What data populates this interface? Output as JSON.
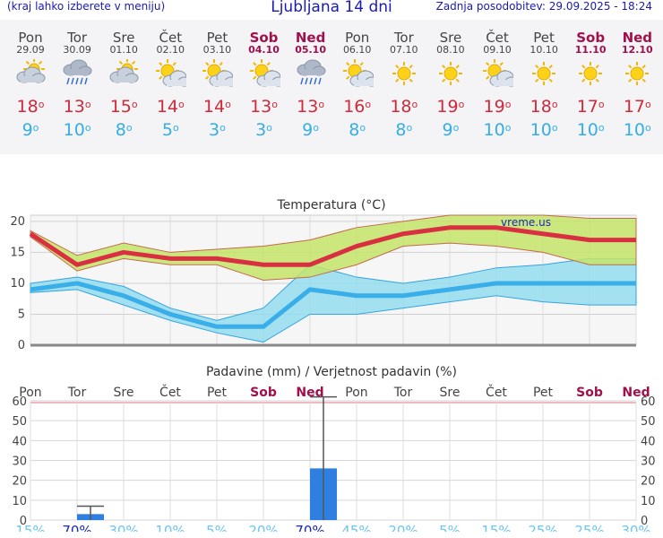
{
  "header": {
    "menu_hint": "(kraj lahko izberete v meniju)",
    "title": "Ljubljana 14 dni",
    "last_update": "Zadnja posodobitev: 29.09.2025 - 18:24"
  },
  "days": [
    {
      "name": "Pon",
      "date": "29.09",
      "weekend": false,
      "icon": "partly-cloudy-icon",
      "max": "18",
      "min": "9"
    },
    {
      "name": "Tor",
      "date": "30.09",
      "weekend": false,
      "icon": "rain-cloud-icon",
      "max": "13",
      "min": "10"
    },
    {
      "name": "Sre",
      "date": "01.10",
      "weekend": false,
      "icon": "partly-cloudy-icon",
      "max": "15",
      "min": "8"
    },
    {
      "name": "Čet",
      "date": "02.10",
      "weekend": false,
      "icon": "sun-cloud-icon",
      "max": "14",
      "min": "5"
    },
    {
      "name": "Pet",
      "date": "03.10",
      "weekend": false,
      "icon": "sun-cloud-icon",
      "max": "14",
      "min": "3"
    },
    {
      "name": "Sob",
      "date": "04.10",
      "weekend": true,
      "icon": "sun-cloud-icon",
      "max": "13",
      "min": "3"
    },
    {
      "name": "Ned",
      "date": "05.10",
      "weekend": true,
      "icon": "rain-cloud-icon",
      "max": "13",
      "min": "9"
    },
    {
      "name": "Pon",
      "date": "06.10",
      "weekend": false,
      "icon": "sun-cloud-icon",
      "max": "16",
      "min": "8"
    },
    {
      "name": "Tor",
      "date": "07.10",
      "weekend": false,
      "icon": "sun-icon",
      "max": "18",
      "min": "8"
    },
    {
      "name": "Sre",
      "date": "08.10",
      "weekend": false,
      "icon": "sun-icon",
      "max": "19",
      "min": "9"
    },
    {
      "name": "Čet",
      "date": "09.10",
      "weekend": false,
      "icon": "sun-cloud-icon",
      "max": "19",
      "min": "10"
    },
    {
      "name": "Pet",
      "date": "10.10",
      "weekend": false,
      "icon": "sun-icon",
      "max": "18",
      "min": "10"
    },
    {
      "name": "Sob",
      "date": "11.10",
      "weekend": true,
      "icon": "sun-icon",
      "max": "17",
      "min": "10"
    },
    {
      "name": "Ned",
      "date": "12.10",
      "weekend": true,
      "icon": "sun-icon",
      "max": "17",
      "min": "10"
    }
  ],
  "colors": {
    "max": "#d83040",
    "min": "#3aaee8",
    "weekend": "#a0104a",
    "bar": "#2f7fe0",
    "max_band": "#c6e46a",
    "min_band": "#8fdcef"
  },
  "chart_data": [
    {
      "type": "line",
      "title": "Temperatura (°C)",
      "watermark": "vreme.us",
      "ylim": [
        0,
        21
      ],
      "yticks": [
        0,
        5,
        10,
        15,
        20
      ],
      "x": [
        "29.09",
        "30.09",
        "01.10",
        "02.10",
        "03.10",
        "04.10",
        "05.10",
        "06.10",
        "07.10",
        "08.10",
        "09.10",
        "10.10",
        "11.10",
        "12.10"
      ],
      "series": [
        {
          "name": "max",
          "values": [
            18,
            13,
            15,
            14,
            14,
            13,
            13,
            16,
            18,
            19,
            19,
            18,
            17,
            17
          ],
          "range_low": [
            17.5,
            12,
            14,
            13,
            13,
            10.5,
            11,
            13,
            16,
            16.5,
            16,
            15,
            13,
            13
          ],
          "range_high": [
            18.5,
            14.5,
            16.5,
            15,
            15.5,
            16,
            17,
            19,
            20,
            21,
            21,
            21,
            20.5,
            20.5
          ]
        },
        {
          "name": "min",
          "values": [
            9,
            10,
            8,
            5,
            3,
            3,
            9,
            8,
            8,
            9,
            10,
            10,
            10,
            10
          ],
          "range_low": [
            8.5,
            9,
            6.5,
            4,
            2,
            0.5,
            5,
            5,
            6,
            7,
            8,
            7,
            6.5,
            6.5
          ],
          "range_high": [
            10,
            11,
            9.5,
            6,
            4,
            6,
            13,
            11,
            10,
            11,
            12.5,
            13,
            14,
            14
          ]
        }
      ]
    },
    {
      "type": "bar",
      "title": "Padavine (mm) / Verjetnost padavin (%)",
      "ylim": [
        0,
        60
      ],
      "yticks": [
        0,
        10,
        20,
        30,
        40,
        50,
        60
      ],
      "categories": [
        "Pon",
        "Tor",
        "Sre",
        "Čet",
        "Pet",
        "Sob",
        "Ned",
        "Pon",
        "Tor",
        "Sre",
        "Čet",
        "Pet",
        "Sob",
        "Ned"
      ],
      "values": [
        0,
        3,
        0,
        0,
        0,
        0,
        26,
        0,
        0,
        0,
        0,
        0,
        0,
        0
      ],
      "error_high": [
        0,
        7,
        0,
        0,
        0,
        0,
        62,
        0,
        0,
        0,
        0,
        0,
        0,
        0
      ],
      "probabilities": [
        "15%",
        "70%",
        "30%",
        "10%",
        "5%",
        "20%",
        "70%",
        "45%",
        "20%",
        "5%",
        "15%",
        "25%",
        "25%",
        "30%"
      ]
    }
  ]
}
